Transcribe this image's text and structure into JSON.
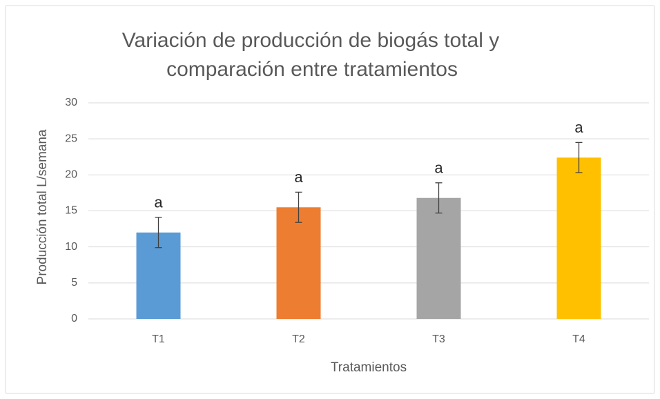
{
  "chart_data": {
    "type": "bar",
    "title": [
      "Variación de producción de biogás total y",
      "comparación entre tratamientos"
    ],
    "xlabel": "Tratamientos",
    "ylabel": "Producción total L/semana",
    "categories": [
      "T1",
      "T2",
      "T3",
      "T4"
    ],
    "values": [
      12.0,
      15.5,
      16.8,
      22.4
    ],
    "errors": [
      2.1,
      2.1,
      2.1,
      2.1
    ],
    "annotations": [
      "a",
      "a",
      "a",
      "a"
    ],
    "colors": [
      "#5b9bd5",
      "#ed7d31",
      "#a5a5a5",
      "#ffc000"
    ],
    "ylim": [
      0,
      30
    ],
    "yticks": [
      0,
      5,
      10,
      15,
      20,
      25,
      30
    ],
    "grid": true
  }
}
